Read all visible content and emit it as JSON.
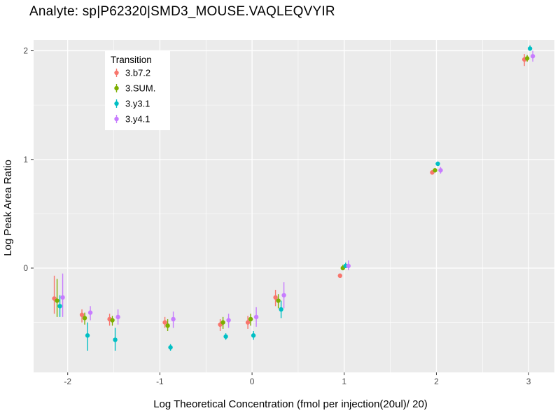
{
  "chart_data": {
    "type": "scatter",
    "title": "Analyte: sp|P62320|SMD3_MOUSE.VAQLEQVYIR",
    "xlabel": "Log Theoretical Concentration (fmol per injection(20ul)/ 20)",
    "ylabel": "Log Peak Area Ratio",
    "legend_title": "Transition",
    "legend_position": "top-left-inside",
    "grid": true,
    "panel_bg": "#EBEBEB",
    "grid_color": "#FFFFFF",
    "tick_color": "#333333",
    "tick_label_color": "#4d4d4d",
    "x_ticks": [
      -2,
      -1,
      0,
      1,
      2,
      3
    ],
    "y_ticks": [
      0,
      1,
      2
    ],
    "x_minor_ticks": [
      -1.5,
      -0.5,
      0.5,
      1.5,
      2.5
    ],
    "y_minor_ticks": [
      -0.5,
      0.5,
      1.5
    ],
    "xlim": [
      -2.37,
      3.28
    ],
    "ylim": [
      -0.96,
      2.1
    ],
    "x": [
      -2.1,
      -1.8,
      -1.5,
      -0.9,
      -0.3,
      0,
      0.3,
      1,
      2,
      3
    ],
    "series": [
      {
        "name": "3.b7.2",
        "color": "#F8766D",
        "y": [
          -0.28,
          -0.43,
          -0.47,
          -0.5,
          -0.52,
          -0.5,
          -0.27,
          -0.07,
          0.88,
          1.92
        ],
        "ymin": [
          -0.42,
          -0.5,
          -0.53,
          -0.55,
          -0.58,
          -0.56,
          -0.35,
          -0.09,
          0.86,
          1.86
        ],
        "ymax": [
          -0.07,
          -0.38,
          -0.42,
          -0.45,
          -0.47,
          -0.44,
          -0.2,
          -0.05,
          0.9,
          1.97
        ]
      },
      {
        "name": "3.SUM.",
        "color": "#7CAE00",
        "y": [
          -0.3,
          -0.46,
          -0.48,
          -0.53,
          -0.5,
          -0.47,
          -0.3,
          0.0,
          0.9,
          1.93
        ],
        "ymin": [
          -0.45,
          -0.52,
          -0.53,
          -0.58,
          -0.56,
          -0.53,
          -0.37,
          -0.02,
          0.88,
          1.9
        ],
        "ymax": [
          -0.1,
          -0.41,
          -0.44,
          -0.47,
          -0.45,
          -0.42,
          -0.24,
          0.03,
          0.92,
          1.96
        ]
      },
      {
        "name": "3.y3.1",
        "color": "#00BFC4",
        "y": [
          -0.35,
          -0.62,
          -0.66,
          -0.73,
          -0.63,
          -0.62,
          -0.38,
          0.02,
          0.96,
          2.02
        ],
        "ymin": [
          -0.45,
          -0.76,
          -0.76,
          -0.76,
          -0.66,
          -0.66,
          -0.46,
          0.0,
          0.94,
          2.0
        ],
        "ymax": [
          -0.25,
          -0.5,
          -0.55,
          -0.7,
          -0.6,
          -0.58,
          -0.3,
          0.05,
          0.98,
          2.05
        ]
      },
      {
        "name": "3.y4.1",
        "color": "#C77CFF",
        "y": [
          -0.27,
          -0.41,
          -0.45,
          -0.47,
          -0.48,
          -0.45,
          -0.25,
          0.02,
          0.9,
          1.95
        ],
        "ymin": [
          -0.45,
          -0.48,
          -0.52,
          -0.55,
          -0.55,
          -0.54,
          -0.37,
          -0.02,
          0.87,
          1.9
        ],
        "ymax": [
          -0.05,
          -0.35,
          -0.38,
          -0.4,
          -0.42,
          -0.36,
          -0.13,
          0.07,
          0.93,
          2.0
        ]
      }
    ]
  }
}
